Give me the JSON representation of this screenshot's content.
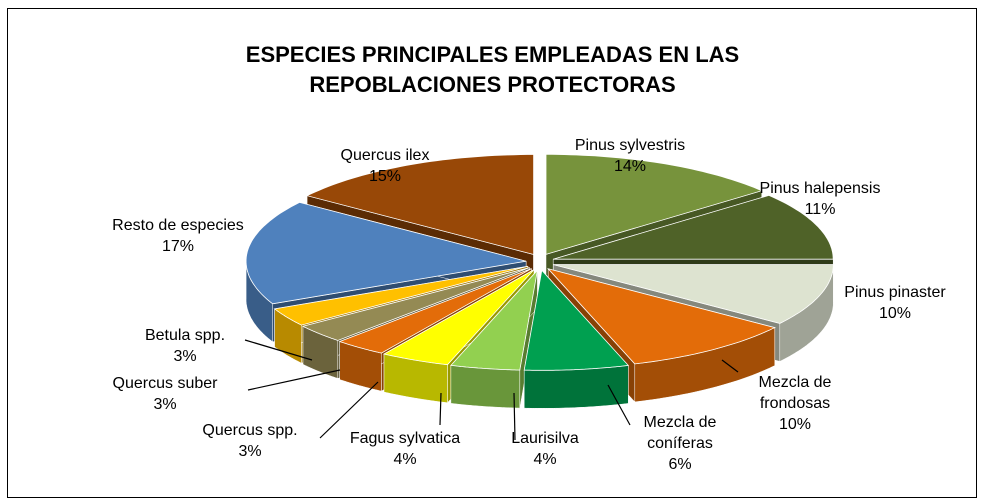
{
  "chart_data": {
    "type": "pie",
    "title": "ESPECIES PRINCIPALES EMPLEADAS EN LAS REPOBLACIONES PROTECTORAS",
    "categories": [
      "Pinus sylvestris",
      "Pinus halepensis",
      "Pinus pinaster",
      "Mezcla de frondosas",
      "Mezcla de coníferas",
      "Laurisilva",
      "Fagus sylvatica",
      "Quercus spp.",
      "Quercus suber",
      "Betula spp.",
      "Resto de especies",
      "Quercus ilex"
    ],
    "values": [
      14,
      11,
      10,
      10,
      6,
      4,
      4,
      3,
      3,
      3,
      17,
      15
    ],
    "value_labels": [
      "14%",
      "11%",
      "10%",
      "10%",
      "6%",
      "4%",
      "4%",
      "3%",
      "3%",
      "3%",
      "17%",
      "15%"
    ],
    "colors": [
      "#77933c",
      "#4f6228",
      "#dde3d0",
      "#e36c09",
      "#00a050",
      "#92d050",
      "#ffff00",
      "#e36c09",
      "#948a54",
      "#ffc000",
      "#4f81bd",
      "#984807"
    ]
  }
}
